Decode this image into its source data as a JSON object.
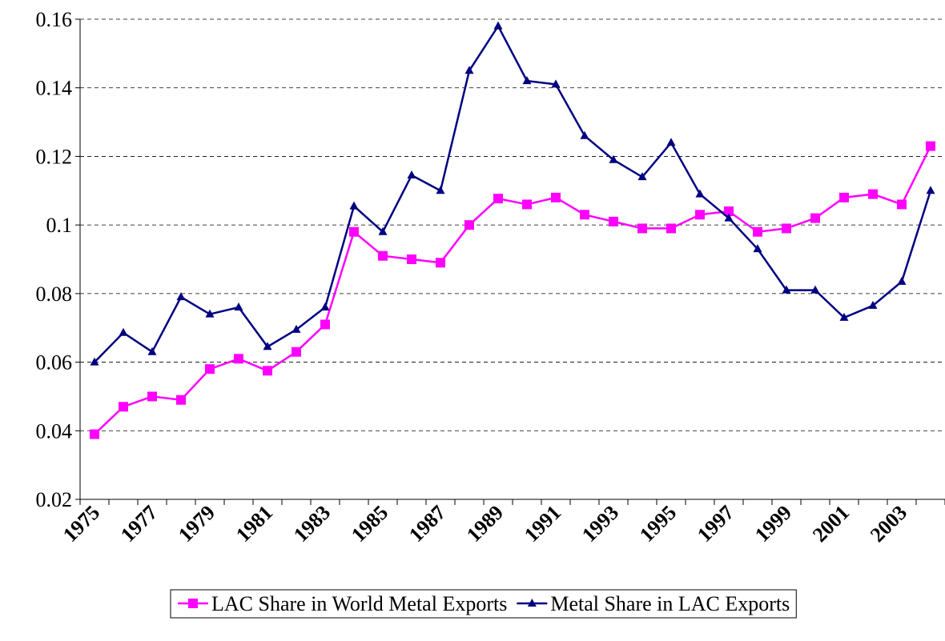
{
  "chart_data": {
    "type": "line",
    "categories": [
      "1975",
      null,
      "1977",
      null,
      "1979",
      null,
      "1981",
      null,
      "1983",
      null,
      "1985",
      null,
      "1987",
      null,
      "1989",
      null,
      "1991",
      null,
      "1993",
      null,
      "1995",
      null,
      "1997",
      null,
      "1999",
      null,
      "2001",
      null,
      "2003",
      null
    ],
    "series": [
      {
        "name": "LAC Share in World Metal Exports",
        "color": "#ff00ff",
        "marker": "square",
        "values": [
          0.039,
          0.047,
          0.05,
          0.049,
          0.058,
          0.061,
          0.0575,
          0.063,
          0.071,
          0.098,
          0.091,
          0.09,
          0.089,
          0.1,
          0.1077,
          0.106,
          0.108,
          0.103,
          0.101,
          0.099,
          0.099,
          0.103,
          0.104,
          0.098,
          0.099,
          0.102,
          0.108,
          0.109,
          0.106,
          0.123
        ]
      },
      {
        "name": "Metal Share in LAC Exports",
        "color": "#000080",
        "marker": "triangle",
        "values": [
          0.06,
          0.0686,
          0.063,
          0.079,
          0.074,
          0.076,
          0.0645,
          0.0695,
          0.076,
          0.1055,
          0.098,
          0.1145,
          0.11,
          0.145,
          0.158,
          0.142,
          0.141,
          0.126,
          0.119,
          0.114,
          0.124,
          0.109,
          0.102,
          0.093,
          0.081,
          0.081,
          0.073,
          0.0765,
          0.0835,
          0.11
        ]
      }
    ],
    "ylim": [
      0.02,
      0.16
    ],
    "yticks": [
      0.02,
      0.04,
      0.06,
      0.08,
      0.1,
      0.12,
      0.14,
      0.16
    ],
    "grid": true,
    "legend": "bottom"
  }
}
